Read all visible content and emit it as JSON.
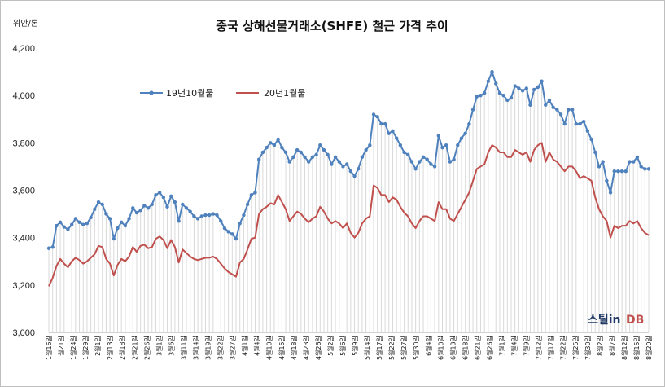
{
  "chart_data": {
    "type": "line",
    "title": "중국 상해선물거래소(SHFE)  철근 가격 추이",
    "ylabel": "위안/톤",
    "ylim": [
      3000,
      4200
    ],
    "yticks": [
      "3,000",
      "3,200",
      "3,400",
      "3,600",
      "3,800",
      "4,000",
      "4,200"
    ],
    "grid": "vertical-drop-lines",
    "legend_position": "top-left",
    "colors": {
      "series1": "#4f81bd",
      "series2": "#c0504d",
      "droplines": "#d9d9d9"
    },
    "series": [
      {
        "name": "19년10월물",
        "values": [
          3355,
          3360,
          3450,
          3465,
          3445,
          3435,
          3455,
          3480,
          3465,
          3455,
          3460,
          3485,
          3520,
          3550,
          3540,
          3500,
          3480,
          3395,
          3440,
          3465,
          3450,
          3480,
          3525,
          3505,
          3515,
          3535,
          3525,
          3540,
          3580,
          3590,
          3570,
          3530,
          3575,
          3550,
          3470,
          3540,
          3525,
          3510,
          3490,
          3480,
          3490,
          3495,
          3495,
          3500,
          3495,
          3470,
          3440,
          3425,
          3415,
          3395,
          3460,
          3495,
          3540,
          3580,
          3590,
          3730,
          3760,
          3780,
          3800,
          3790,
          3815,
          3780,
          3760,
          3720,
          3740,
          3770,
          3760,
          3740,
          3720,
          3740,
          3750,
          3790,
          3770,
          3750,
          3710,
          3740,
          3720,
          3700,
          3710,
          3680,
          3660,
          3690,
          3740,
          3770,
          3790,
          3920,
          3910,
          3880,
          3880,
          3840,
          3850,
          3820,
          3790,
          3760,
          3750,
          3720,
          3690,
          3720,
          3740,
          3730,
          3710,
          3700,
          3830,
          3780,
          3790,
          3720,
          3730,
          3790,
          3820,
          3840,
          3880,
          3940,
          3995,
          4000,
          4010,
          4060,
          4100,
          4050,
          4010,
          4000,
          3980,
          3990,
          4040,
          4030,
          4020,
          4030,
          3960,
          4025,
          4035,
          4060,
          3960,
          3980,
          3950,
          3940,
          3920,
          3880,
          3940,
          3940,
          3880,
          3880,
          3890,
          3850,
          3815,
          3760,
          3700,
          3720,
          3640,
          3590,
          3680,
          3680,
          3680,
          3680,
          3720,
          3720,
          3740,
          3700,
          3690,
          3690
        ]
      },
      {
        "name": "20년1월물",
        "values": [
          3195,
          3230,
          3280,
          3310,
          3290,
          3275,
          3300,
          3315,
          3305,
          3290,
          3300,
          3315,
          3330,
          3365,
          3360,
          3310,
          3290,
          3240,
          3285,
          3310,
          3300,
          3320,
          3360,
          3340,
          3365,
          3370,
          3355,
          3360,
          3395,
          3405,
          3390,
          3355,
          3390,
          3360,
          3295,
          3350,
          3335,
          3320,
          3310,
          3305,
          3310,
          3315,
          3315,
          3320,
          3310,
          3290,
          3270,
          3255,
          3245,
          3235,
          3295,
          3310,
          3350,
          3395,
          3400,
          3500,
          3520,
          3530,
          3545,
          3540,
          3580,
          3550,
          3520,
          3470,
          3490,
          3510,
          3500,
          3480,
          3465,
          3480,
          3490,
          3530,
          3510,
          3480,
          3460,
          3470,
          3460,
          3440,
          3460,
          3420,
          3400,
          3420,
          3460,
          3480,
          3490,
          3620,
          3610,
          3580,
          3580,
          3550,
          3570,
          3560,
          3530,
          3505,
          3490,
          3460,
          3440,
          3470,
          3490,
          3490,
          3480,
          3470,
          3550,
          3520,
          3520,
          3480,
          3470,
          3500,
          3530,
          3560,
          3590,
          3640,
          3690,
          3700,
          3710,
          3760,
          3790,
          3780,
          3760,
          3760,
          3740,
          3740,
          3770,
          3760,
          3750,
          3760,
          3720,
          3770,
          3790,
          3800,
          3720,
          3760,
          3730,
          3720,
          3700,
          3680,
          3700,
          3700,
          3680,
          3650,
          3660,
          3650,
          3640,
          3570,
          3520,
          3490,
          3470,
          3400,
          3450,
          3440,
          3450,
          3450,
          3470,
          3460,
          3470,
          3440,
          3420,
          3410
        ]
      }
    ],
    "x_tick_labels": [
      "1월16일",
      "1월21일",
      "1월24일",
      "1월29일",
      "2월1일",
      "2월13일",
      "2월18일",
      "2월21일",
      "2월26일",
      "3월1일",
      "3월6일",
      "3월11일",
      "3월14일",
      "3월19일",
      "3월22일",
      "3월27일",
      "4월1일",
      "4월4일",
      "4월10일",
      "4월15일",
      "4월18일",
      "4월23일",
      "4월26일",
      "5월2일",
      "5월6일",
      "5월9일",
      "5월14일",
      "5월17일",
      "5월22일",
      "5월27일",
      "5월30일",
      "6월4일",
      "6월10일",
      "6월13일",
      "6월18일",
      "6월21일",
      "6월26일",
      "7월1일",
      "7월4일",
      "7월9일",
      "7월12일",
      "7월17일",
      "7월22일",
      "7월25일",
      "7월30일",
      "8월2일",
      "8월7일",
      "8월12일",
      "8월15일",
      "8월20일"
    ]
  },
  "watermark": {
    "part1": "스틸in",
    "part2": "DB"
  }
}
